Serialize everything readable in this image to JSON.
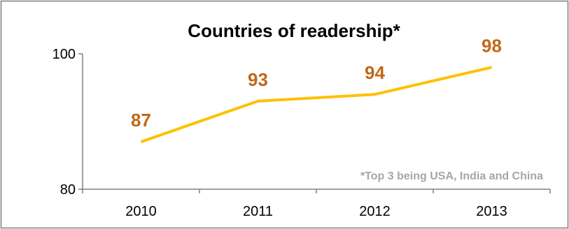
{
  "chart_data": {
    "type": "line",
    "title": "Countries of readership*",
    "categories": [
      "2010",
      "2011",
      "2012",
      "2013"
    ],
    "series": [
      {
        "values": [
          87,
          93,
          94,
          98
        ],
        "data_labels": [
          "87",
          "93",
          "94",
          "98"
        ]
      }
    ],
    "ylim": [
      80,
      100
    ],
    "yticks": [
      "100",
      "80"
    ],
    "xlabel": "",
    "ylabel": "",
    "grid": false,
    "annotation": "*Top 3 being USA, India and China"
  },
  "colors": {
    "line": "#ffc000",
    "data_label": "#c0691a",
    "footnote": "#a6a6a6",
    "axis": "#808080",
    "frame": "#808080"
  }
}
